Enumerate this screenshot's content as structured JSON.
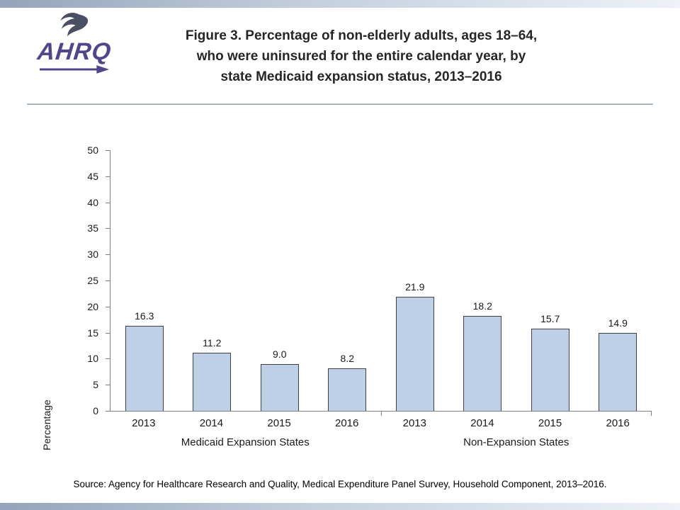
{
  "header": {
    "logo_text": "AHRQ",
    "title_lines": [
      "Figure 3. Percentage of non-elderly adults, ages 18–64,",
      "who were uninsured for the entire calendar year, by",
      "state Medicaid expansion status, 2013–2016"
    ]
  },
  "chart_data": {
    "type": "bar",
    "title": "Percentage of non-elderly adults, ages 18–64, who were uninsured for the entire calendar year, by state Medicaid expansion status, 2013–2016",
    "xlabel": "",
    "ylabel": "Percentage",
    "ylim": [
      0,
      50
    ],
    "ytick_step": 5,
    "grid": false,
    "legend": false,
    "bar_color": "#bdd0e7",
    "bar_border_color": "#404040",
    "groups": [
      {
        "label": "Medicaid Expansion States",
        "categories": [
          "2013",
          "2014",
          "2015",
          "2016"
        ],
        "values": [
          16.3,
          11.2,
          9.0,
          8.2
        ]
      },
      {
        "label": "Non-Expansion States",
        "categories": [
          "2013",
          "2014",
          "2015",
          "2016"
        ],
        "values": [
          21.9,
          18.2,
          15.7,
          14.9
        ]
      }
    ]
  },
  "footer": {
    "source": "Source: Agency for Healthcare Research and Quality, Medical Expenditure Panel Survey, Household Component, 2013–2016."
  }
}
